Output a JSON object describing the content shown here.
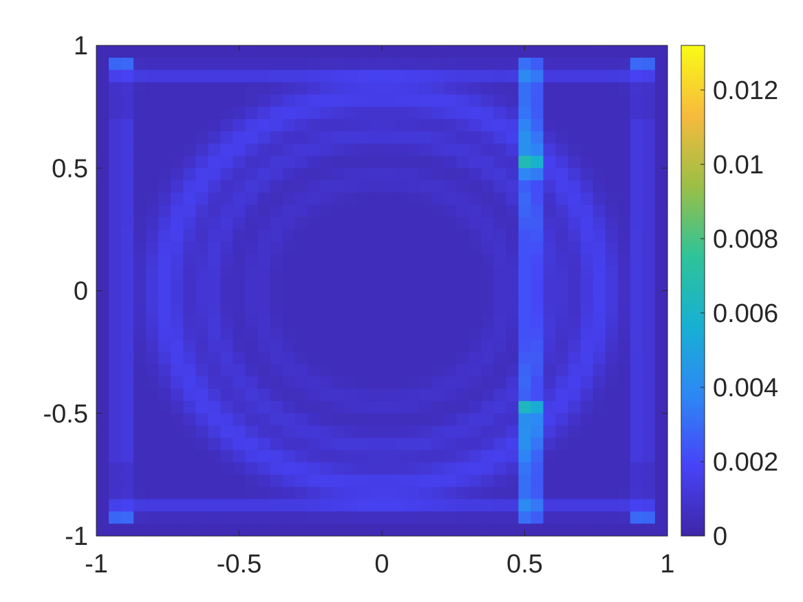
{
  "chart_data": {
    "type": "heatmap",
    "title": "",
    "xlabel": "",
    "ylabel": "",
    "xlim": [
      -1,
      1
    ],
    "ylim": [
      -1,
      1
    ],
    "grid": false,
    "legend": "none",
    "grid_cells": [
      46,
      40
    ],
    "colormap": "parula",
    "colormap_stops": [
      "#3e26a8",
      "#4743f7",
      "#2e87f5",
      "#17b0d3",
      "#2fc398",
      "#9cbf46",
      "#f7ba3d",
      "#f9fb15"
    ],
    "colorbar": {
      "range": [
        0,
        0.0132
      ],
      "position": "right"
    },
    "x_ticks": [
      {
        "value": -1,
        "label": "-1"
      },
      {
        "value": -0.5,
        "label": "-0.5"
      },
      {
        "value": 0,
        "label": "0"
      },
      {
        "value": 0.5,
        "label": "0.5"
      },
      {
        "value": 1,
        "label": "1"
      }
    ],
    "y_ticks": [
      {
        "value": 1,
        "label": "1"
      },
      {
        "value": 0.5,
        "label": "0.5"
      },
      {
        "value": 0,
        "label": "0"
      },
      {
        "value": -0.5,
        "label": "-0.5"
      },
      {
        "value": -1,
        "label": "-1"
      }
    ],
    "colorbar_ticks": [
      {
        "value": 0,
        "label": "0"
      },
      {
        "value": 0.002,
        "label": "0.002"
      },
      {
        "value": 0.004,
        "label": "0.004"
      },
      {
        "value": 0.006,
        "label": "0.006"
      },
      {
        "value": 0.008,
        "label": "0.008"
      },
      {
        "value": 0.01,
        "label": "0.01"
      },
      {
        "value": 0.012,
        "label": "0.012"
      }
    ],
    "features": {
      "max_value": 0.0132,
      "vertical_band_x": 0.52,
      "hotspots": [
        [
          0.52,
          0.51
        ],
        [
          0.52,
          -0.49
        ]
      ],
      "ring_radii": [
        0.78,
        0.62,
        0.45
      ],
      "edge_value": 0.0003
    }
  },
  "colors": {
    "axis": "#262626",
    "background": "#ffffff"
  }
}
